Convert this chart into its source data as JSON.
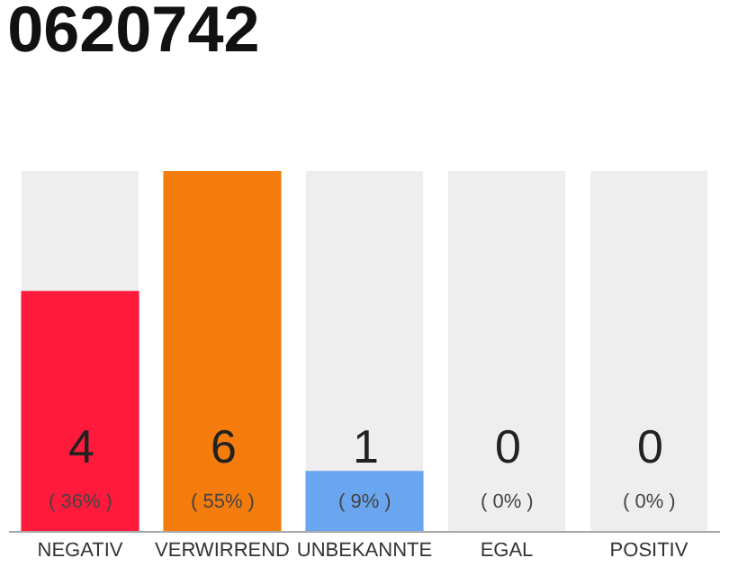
{
  "chart_data": {
    "type": "bar",
    "title": "0620742",
    "categories": [
      "NEGATIV",
      "VERWIRREND",
      "UNBEKANNTE",
      "EGAL",
      "POSITIV"
    ],
    "values": [
      4,
      6,
      1,
      0,
      0
    ],
    "colors": [
      "#ff1a3c",
      "#f47c0c",
      "#6aa6f0",
      "#cccccc",
      "#cccccc"
    ],
    "tick_labels": "x",
    "value_labels": [
      "4",
      "6",
      "1",
      "0",
      "0"
    ],
    "annotations": [
      "( 36% )",
      "( 55% )",
      "( 9% )",
      "( 0% )",
      "( 0% )"
    ]
  }
}
